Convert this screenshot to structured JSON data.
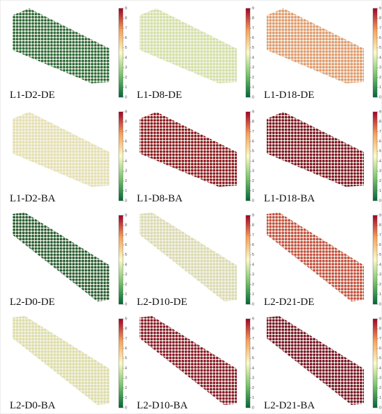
{
  "colorbar_ticks": [
    0,
    1,
    2,
    3,
    4,
    5,
    6,
    7,
    8,
    9
  ],
  "panels": [
    {
      "label": "L1-D2-DE",
      "color": "#2e6b3a"
    },
    {
      "label": "L1-D8-DE",
      "color": "#d3e0a4"
    },
    {
      "label": "L1-D18-DE",
      "color": "#e39a6c"
    },
    {
      "label": "L1-D2-BA",
      "color": "#e6dfae"
    },
    {
      "label": "L1-D8-BA",
      "color": "#8e1a22"
    },
    {
      "label": "L1-D18-BA",
      "color": "#7e1422"
    },
    {
      "label": "L2-D0-DE",
      "color": "#2a5e35"
    },
    {
      "label": "L2-D10-DE",
      "color": "#dbdab0"
    },
    {
      "label": "L2-D21-DE",
      "color": "#c65040"
    },
    {
      "label": "L2-D0-BA",
      "color": "#dedda6"
    },
    {
      "label": "L2-D10-BA",
      "color": "#8a1a2a"
    },
    {
      "label": "L2-D21-BA",
      "color": "#7a1428"
    }
  ]
}
